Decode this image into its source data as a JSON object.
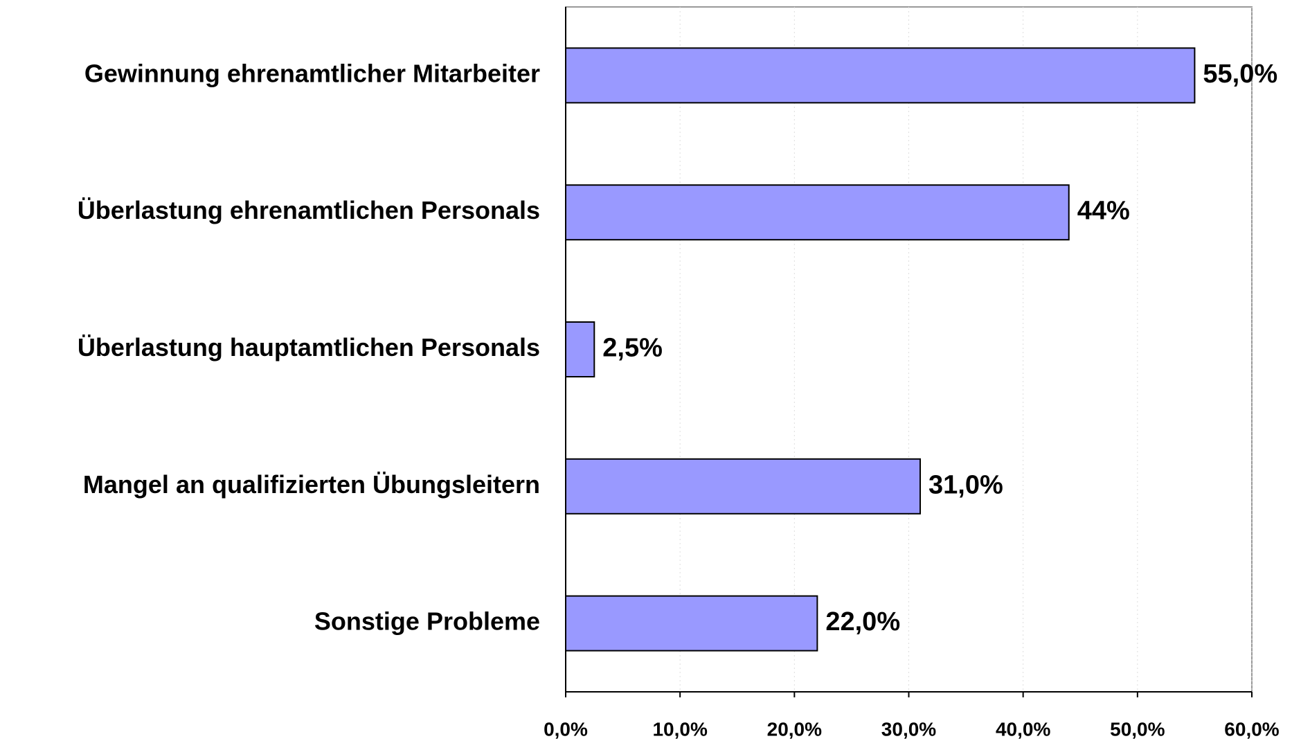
{
  "chart_data": {
    "type": "bar",
    "orientation": "horizontal",
    "categories": [
      "Gewinnung ehrenamtlicher Mitarbeiter",
      "Überlastung ehrenamtlichen Personals",
      "Überlastung hauptamtlichen Personals",
      "Mangel an qualifizierten Übungsleitern",
      "Sonstige Probleme"
    ],
    "values": [
      55,
      44,
      2.5,
      31,
      22
    ],
    "value_labels": [
      "55,0%",
      "44%",
      "2,5%",
      "31,0%",
      "22,0%"
    ],
    "color": "#9999ff",
    "xlim": [
      0,
      60
    ],
    "xticks": [
      {
        "value": 0,
        "label": "0,0%"
      },
      {
        "value": 10,
        "label": "10,0%"
      },
      {
        "value": 20,
        "label": "20,0%"
      },
      {
        "value": 30,
        "label": "30,0%"
      },
      {
        "value": 40,
        "label": "40,0%"
      },
      {
        "value": 50,
        "label": "50,0%"
      },
      {
        "value": 60,
        "label": "60,0%"
      }
    ],
    "grid": true
  }
}
